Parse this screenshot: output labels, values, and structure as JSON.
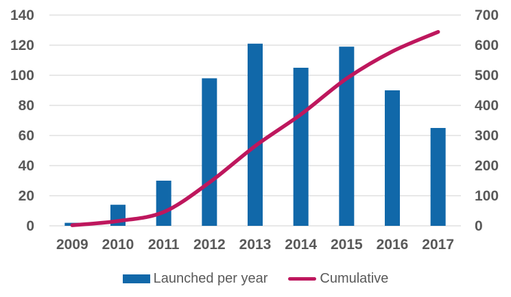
{
  "chart_data": {
    "type": "bar+line",
    "title": "",
    "categories": [
      "2009",
      "2010",
      "2011",
      "2012",
      "2013",
      "2014",
      "2015",
      "2016",
      "2017"
    ],
    "series": [
      {
        "name": "Launched per year",
        "type": "bar",
        "axis": "left",
        "color": "#1168a9",
        "values": [
          2,
          14,
          30,
          98,
          121,
          105,
          119,
          90,
          65
        ]
      },
      {
        "name": "Cumulative",
        "type": "line",
        "axis": "right",
        "color": "#be175d",
        "values": [
          2,
          16,
          46,
          144,
          265,
          370,
          489,
          579,
          644
        ]
      }
    ],
    "left_axis": {
      "min": 0,
      "max": 140,
      "step": 20,
      "ticks": [
        0,
        20,
        40,
        60,
        80,
        100,
        120,
        140
      ]
    },
    "right_axis": {
      "min": 0,
      "max": 700,
      "step": 100,
      "ticks": [
        0,
        100,
        200,
        300,
        400,
        500,
        600,
        700
      ]
    },
    "grid": true,
    "legend_position": "bottom",
    "colors": {
      "grid": "#d9d9d9",
      "axis_text": "#595959",
      "background": "#ffffff"
    }
  }
}
